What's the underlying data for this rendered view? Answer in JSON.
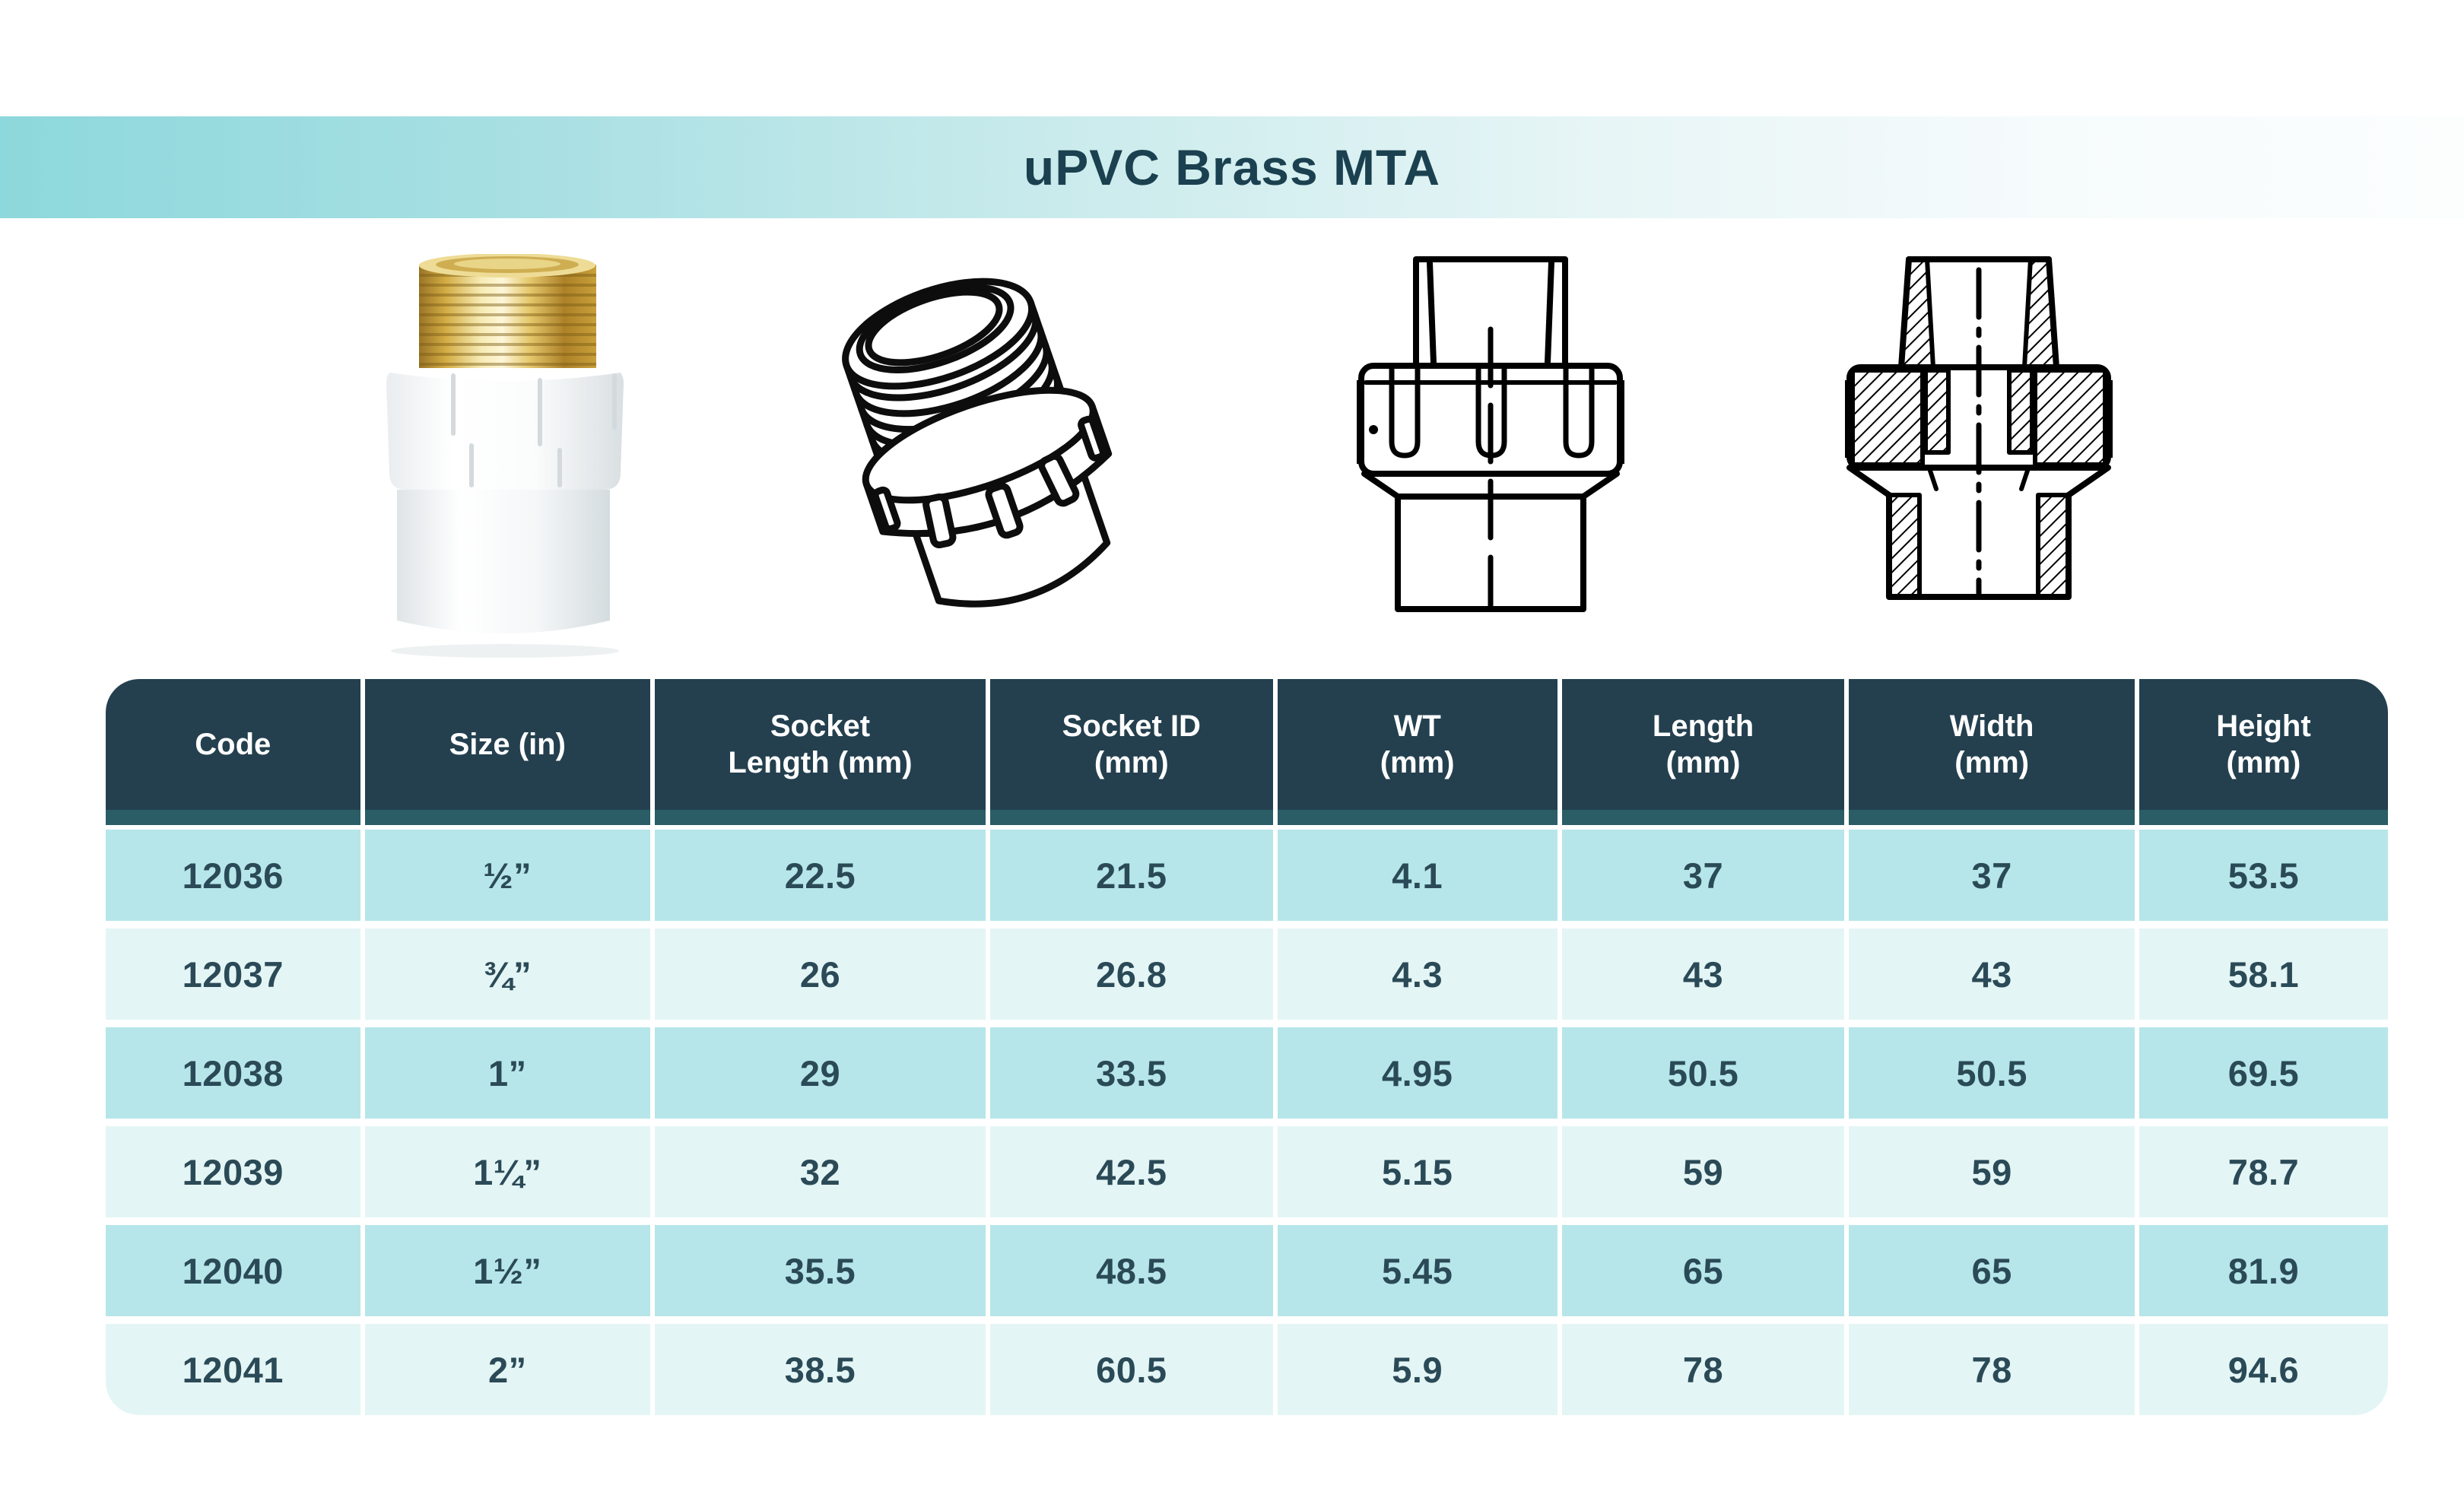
{
  "title": "uPVC Brass MTA",
  "colors": {
    "banner_teal": "#8dd8dc",
    "title_text": "#1b4150",
    "header_bg": "#24404f",
    "header_underline_band": "#2a5d66",
    "row_teal": "#b6e6e9",
    "row_light": "#e4f5f5",
    "data_text": "#2b4a57",
    "brass": "#d9b44e"
  },
  "figures": [
    {
      "name": "product-photo"
    },
    {
      "name": "isometric-line-drawing"
    },
    {
      "name": "front-view-drawing"
    },
    {
      "name": "cross-section-drawing"
    }
  ],
  "table": {
    "columns": [
      {
        "lines": [
          "Code"
        ]
      },
      {
        "lines": [
          "Size (in)"
        ]
      },
      {
        "lines": [
          "Socket",
          "Length (mm)"
        ]
      },
      {
        "lines": [
          "Socket ID",
          "(mm)"
        ]
      },
      {
        "lines": [
          "WT",
          "(mm)"
        ]
      },
      {
        "lines": [
          "Length",
          "(mm)"
        ]
      },
      {
        "lines": [
          "Width",
          "(mm)"
        ]
      },
      {
        "lines": [
          "Height",
          "(mm)"
        ]
      }
    ],
    "rows": [
      {
        "cells": [
          "12036",
          "½”",
          "22.5",
          "21.5",
          "4.1",
          "37",
          "37",
          "53.5"
        ]
      },
      {
        "cells": [
          "12037",
          "¾”",
          "26",
          "26.8",
          "4.3",
          "43",
          "43",
          "58.1"
        ]
      },
      {
        "cells": [
          "12038",
          "1”",
          "29",
          "33.5",
          "4.95",
          "50.5",
          "50.5",
          "69.5"
        ]
      },
      {
        "cells": [
          "12039",
          "1¼”",
          "32",
          "42.5",
          "5.15",
          "59",
          "59",
          "78.7"
        ]
      },
      {
        "cells": [
          "12040",
          "1½”",
          "35.5",
          "48.5",
          "5.45",
          "65",
          "65",
          "81.9"
        ]
      },
      {
        "cells": [
          "12041",
          "2”",
          "38.5",
          "60.5",
          "5.9",
          "78",
          "78",
          "94.6"
        ]
      }
    ]
  }
}
